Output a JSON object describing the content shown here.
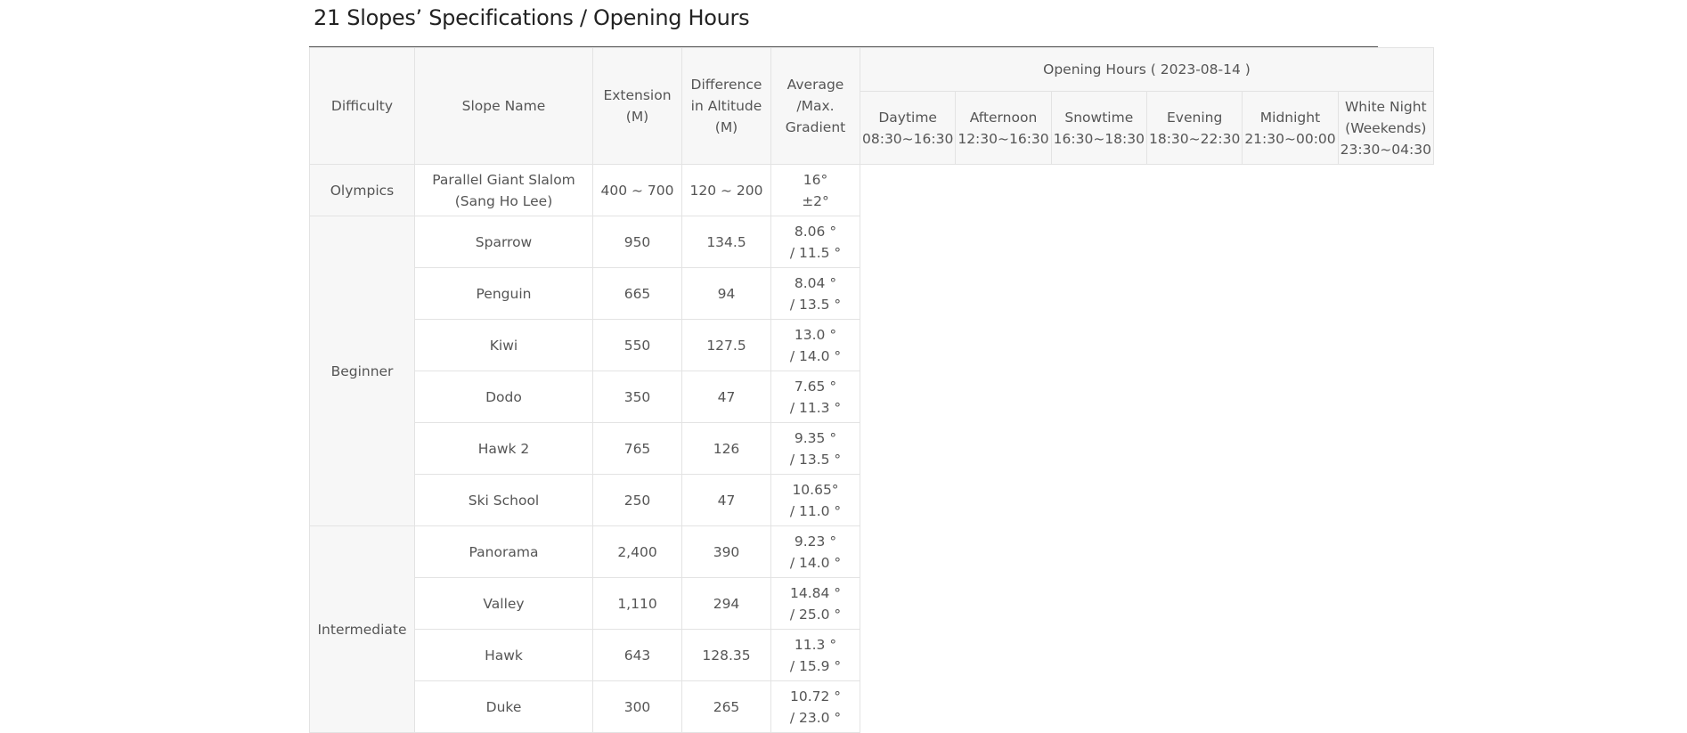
{
  "page": {
    "title": "21 Slopes’ Specifications / Opening Hours"
  },
  "table": {
    "headers": {
      "difficulty": "Difficulty",
      "slope_name": "Slope Name",
      "extension": [
        "Extension",
        "(M)"
      ],
      "altitude": [
        "Difference",
        "in Altitude",
        "(M)"
      ],
      "gradient": [
        "Average",
        "/Max.",
        "Gradient"
      ],
      "opening_hours": "Opening Hours ( 2023-08-14 )",
      "hours": [
        {
          "label": "Daytime",
          "time": "08:30~16:30"
        },
        {
          "label": "Afternoon",
          "time": "12:30~16:30"
        },
        {
          "label": "Snowtime",
          "time": "16:30~18:30"
        },
        {
          "label": "Evening",
          "time": "18:30~22:30"
        },
        {
          "label": "Midnight",
          "time": "21:30~00:00"
        },
        {
          "label": "White Night",
          "sub": "(Weekends)",
          "time": "23:30~04:30"
        }
      ]
    },
    "groups": [
      {
        "difficulty": "Olympics",
        "rows": [
          {
            "name": [
              "Parallel Giant Slalom",
              "(Sang Ho Lee)"
            ],
            "extension": "400 ~ 700",
            "altitude": "120 ~ 200",
            "gradient": [
              "16°",
              "±2°"
            ]
          }
        ]
      },
      {
        "difficulty": "Beginner",
        "rows": [
          {
            "name": [
              "Sparrow"
            ],
            "extension": "950",
            "altitude": "134.5",
            "gradient": [
              "8.06 °",
              "/ 11.5 °"
            ]
          },
          {
            "name": [
              "Penguin"
            ],
            "extension": "665",
            "altitude": "94",
            "gradient": [
              "8.04 °",
              "/ 13.5 °"
            ]
          },
          {
            "name": [
              "Kiwi"
            ],
            "extension": "550",
            "altitude": "127.5",
            "gradient": [
              "13.0 °",
              "/ 14.0 °"
            ]
          },
          {
            "name": [
              "Dodo"
            ],
            "extension": "350",
            "altitude": "47",
            "gradient": [
              "7.65 °",
              "/ 11.3 °"
            ]
          },
          {
            "name": [
              "Hawk 2"
            ],
            "extension": "765",
            "altitude": "126",
            "gradient": [
              "9.35 °",
              "/ 13.5 °"
            ]
          },
          {
            "name": [
              "Ski School"
            ],
            "extension": "250",
            "altitude": "47",
            "gradient": [
              "10.65°",
              "/ 11.0 °"
            ]
          }
        ]
      },
      {
        "difficulty": "Intermediate",
        "rows": [
          {
            "name": [
              "Panorama"
            ],
            "extension": "2,400",
            "altitude": "390",
            "gradient": [
              "9.23 °",
              "/ 14.0 °"
            ]
          },
          {
            "name": [
              "Valley"
            ],
            "extension": "1,110",
            "altitude": "294",
            "gradient": [
              "14.84 °",
              "/ 25.0 °"
            ]
          },
          {
            "name": [
              "Hawk"
            ],
            "extension": "643",
            "altitude": "128.35",
            "gradient": [
              "11.3 °",
              "/ 15.9 °"
            ]
          },
          {
            "name": [
              "Duke"
            ],
            "extension": "300",
            "altitude": "265",
            "gradient": [
              "10.72 °",
              "/ 23.0 °"
            ]
          }
        ]
      }
    ]
  }
}
